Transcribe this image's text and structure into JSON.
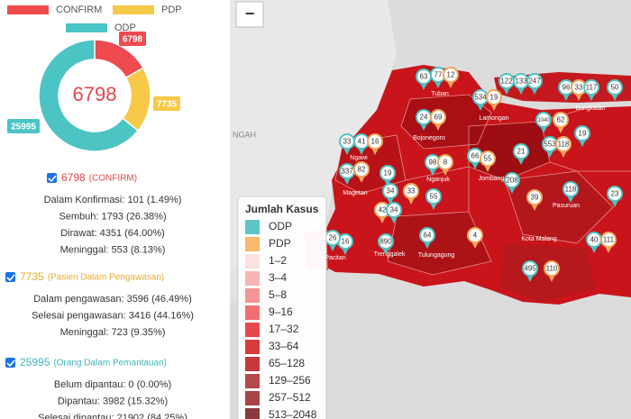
{
  "chart_data": {
    "type": "pie",
    "categories": [
      "CONFIRM",
      "PDP",
      "ODP"
    ],
    "values": [
      6798,
      7735,
      25995
    ],
    "colors": [
      "#ee4a4f",
      "#f7c948",
      "#4cc4c4"
    ]
  },
  "sections": [
    {
      "label": "(CONFIRM)",
      "color": "#e0474c",
      "lines": [
        "Dalam Konfirmasi: 101 (1.49%)",
        "Sembuh: 1793 (26.38%)",
        "Dirawat: 4351 (64.00%)",
        "Meninggal: 553 (8.13%)"
      ]
    },
    {
      "label": "(Pasien Dalam Pengawasan)",
      "color": "#e6ac2e",
      "lines": [
        "Dalam pengawasan: 3596 (46.49%)",
        "Selesai pengawasan: 3416 (44.16%)",
        "Meninggal: 723 (9.35%)"
      ]
    },
    {
      "label": "(Orang Dalam Pemantauan)",
      "color": "#3fb3b8",
      "lines": [
        "Belum dipantau: 0 (0.00%)",
        "Dipantau: 3982 (15.32%)",
        "Selesai dipantau: 21902 (84.25%)"
      ]
    }
  ],
  "map": {
    "zoom_out": "−",
    "outside_label": "NGAH",
    "region_labels": [
      "Tuban",
      "Lamongan",
      "Bangkalan",
      "Bojonegoro",
      "Ngawi",
      "Magetan",
      "Nganjuk",
      "Jombang",
      "Pasuruan",
      "Pacitan",
      "Trenggalek",
      "Tulungagung",
      "Kota Malang"
    ],
    "markers": [
      {
        "label": "63",
        "color": "#4cc4c4"
      },
      {
        "label": "77",
        "color": "#4cc4c4"
      },
      {
        "label": "12",
        "color": "#f2a65a"
      },
      {
        "label": "122",
        "color": "#4cc4c4"
      },
      {
        "label": "133",
        "color": "#4cc4c4"
      },
      {
        "label": "247",
        "color": "#4cc4c4"
      },
      {
        "label": "96",
        "color": "#4cc4c4"
      },
      {
        "label": "33",
        "color": "#f2a65a"
      },
      {
        "label": "117",
        "color": "#4cc4c4"
      },
      {
        "label": "50",
        "color": "#4cc4c4"
      },
      {
        "label": "534",
        "color": "#4cc4c4"
      },
      {
        "label": "19",
        "color": "#f2a65a"
      },
      {
        "label": "24",
        "color": "#4cc4c4"
      },
      {
        "label": "69",
        "color": "#f2a65a"
      },
      {
        "label": "1040",
        "color": "#4cc4c4"
      },
      {
        "label": "62",
        "color": "#f2a65a"
      },
      {
        "label": "19",
        "color": "#4cc4c4"
      },
      {
        "label": "33",
        "color": "#4cc4c4"
      },
      {
        "label": "41",
        "color": "#4cc4c4"
      },
      {
        "label": "16",
        "color": "#f2a65a"
      },
      {
        "label": "553",
        "color": "#4cc4c4"
      },
      {
        "label": "118",
        "color": "#f2a65a"
      },
      {
        "label": "337",
        "color": "#4cc4c4"
      },
      {
        "label": "82",
        "color": "#f2a65a"
      },
      {
        "label": "19",
        "color": "#4cc4c4"
      },
      {
        "label": "98",
        "color": "#4cc4c4"
      },
      {
        "label": "8",
        "color": "#f2a65a"
      },
      {
        "label": "66",
        "color": "#4cc4c4"
      },
      {
        "label": "55",
        "color": "#f2a65a"
      },
      {
        "label": "21",
        "color": "#4cc4c4"
      },
      {
        "label": "208",
        "color": "#4cc4c4"
      },
      {
        "label": "39",
        "color": "#f2a65a"
      },
      {
        "label": "118",
        "color": "#4cc4c4"
      },
      {
        "label": "34",
        "color": "#4cc4c4"
      },
      {
        "label": "33",
        "color": "#f2a65a"
      },
      {
        "label": "55",
        "color": "#4cc4c4"
      },
      {
        "label": "23",
        "color": "#4cc4c4"
      },
      {
        "label": "42",
        "color": "#f2a65a"
      },
      {
        "label": "34",
        "color": "#4cc4c4"
      },
      {
        "label": "64",
        "color": "#4cc4c4"
      },
      {
        "label": "4",
        "color": "#f2a65a"
      },
      {
        "label": "16",
        "color": "#4cc4c4"
      },
      {
        "label": "26",
        "color": "#4cc4c4"
      },
      {
        "label": "890",
        "color": "#4cc4c4"
      },
      {
        "label": "40",
        "color": "#4cc4c4"
      },
      {
        "label": "111",
        "color": "#f2a65a"
      },
      {
        "label": "495",
        "color": "#4cc4c4"
      },
      {
        "label": "110",
        "color": "#f2a65a"
      }
    ]
  },
  "map_legend": {
    "title": "Jumlah Kasus",
    "items": [
      {
        "label": "ODP",
        "color": "#5fc6c6"
      },
      {
        "label": "PDP",
        "color": "#f8b96a"
      },
      {
        "label": "1–2",
        "color": "#fde0e0"
      },
      {
        "label": "3–4",
        "color": "#f9b4b6"
      },
      {
        "label": "5–8",
        "color": "#f49596"
      },
      {
        "label": "9–16",
        "color": "#f07072"
      },
      {
        "label": "17–32",
        "color": "#e9484b"
      },
      {
        "label": "33–64",
        "color": "#d93b3d"
      },
      {
        "label": "65–128",
        "color": "#c5393b"
      },
      {
        "label": "129–256",
        "color": "#b5484a"
      },
      {
        "label": "257–512",
        "color": "#a84446"
      },
      {
        "label": "513–2048",
        "color": "#8a3a3c"
      }
    ]
  }
}
